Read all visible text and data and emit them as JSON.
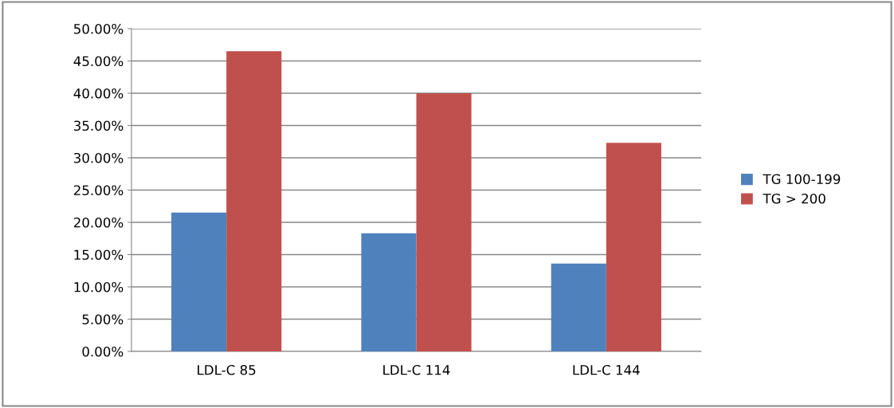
{
  "chart_data": {
    "type": "bar",
    "categories": [
      "LDL-C 85",
      "LDL-C 114",
      "LDL-C 144"
    ],
    "series": [
      {
        "name": "TG 100-199",
        "color": "#4f81bd",
        "values": [
          21.5,
          18.3,
          13.6
        ]
      },
      {
        "name": "TG > 200",
        "color": "#c0504d",
        "values": [
          46.5,
          40.0,
          32.3
        ]
      }
    ],
    "ylim": [
      0,
      50
    ],
    "yticks": [
      {
        "value": 0,
        "label": "0.00%"
      },
      {
        "value": 5,
        "label": "5.00%"
      },
      {
        "value": 10,
        "label": "10.00%"
      },
      {
        "value": 15,
        "label": "15.00%"
      },
      {
        "value": 20,
        "label": "20.00%"
      },
      {
        "value": 25,
        "label": "25.00%"
      },
      {
        "value": 30,
        "label": "30.00%"
      },
      {
        "value": 35,
        "label": "35.00%"
      },
      {
        "value": 40,
        "label": "40.00%"
      },
      {
        "value": 45,
        "label": "45.00%"
      },
      {
        "value": 50,
        "label": "50.00%"
      }
    ],
    "grid": "y",
    "legend": "right"
  }
}
